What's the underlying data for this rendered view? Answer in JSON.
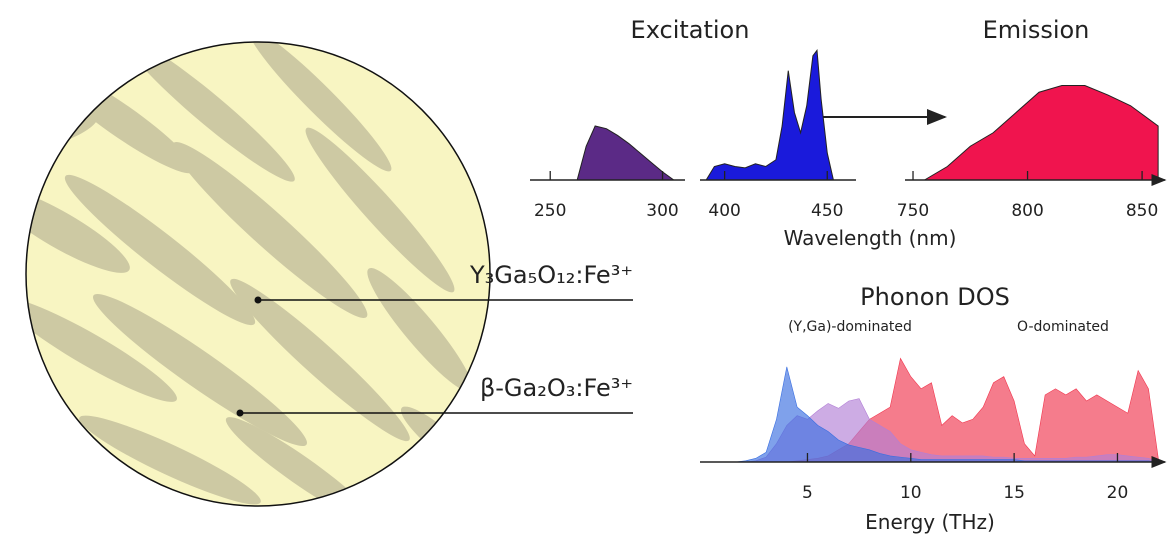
{
  "labels": [
    "Y₃Ga₅O₁₂:Fe³⁺",
    "β-Ga₂O₃:Fe³⁺"
  ],
  "chart_data": [
    {
      "type": "area",
      "title": "Excitation",
      "x": [
        262,
        266,
        270,
        275,
        280,
        285,
        290,
        295,
        300,
        305
      ],
      "series": [
        {
          "color": "#5b2a86",
          "values": [
            0,
            0.25,
            0.4,
            0.38,
            0.33,
            0.27,
            0.2,
            0.13,
            0.06,
            0
          ]
        }
      ],
      "xlim": [
        241,
        310
      ],
      "xticks": [
        250,
        300
      ],
      "ylim": [
        0,
        1
      ]
    },
    {
      "type": "area",
      "xlabel": "Wavelength (nm)",
      "x": [
        391,
        395,
        400,
        405,
        410,
        415,
        420,
        425,
        428,
        431,
        434,
        437,
        440,
        443,
        445,
        447,
        450,
        453
      ],
      "series": [
        {
          "color": "#1a1adb",
          "values": [
            0,
            0.1,
            0.12,
            0.1,
            0.09,
            0.12,
            0.1,
            0.15,
            0.4,
            0.81,
            0.5,
            0.35,
            0.55,
            0.92,
            0.96,
            0.6,
            0.2,
            0
          ]
        }
      ],
      "xlim": [
        388,
        464
      ],
      "xticks": [
        400,
        450
      ],
      "ylim": [
        0,
        1
      ]
    },
    {
      "type": "area",
      "title": "Emission",
      "x": [
        755,
        765,
        775,
        785,
        795,
        805,
        815,
        825,
        835,
        845,
        857
      ],
      "series": [
        {
          "color": "#f0144e",
          "values": [
            0,
            0.1,
            0.25,
            0.35,
            0.5,
            0.65,
            0.7,
            0.7,
            0.63,
            0.55,
            0.4
          ]
        }
      ],
      "xlim": [
        746.5,
        860
      ],
      "xticks": [
        750,
        800,
        850
      ],
      "ylim": [
        0,
        1
      ]
    },
    {
      "type": "area",
      "title": "Phonon DOS",
      "xlabel": "Energy (THz)",
      "annotations": [
        "(Y,Ga)-dominated",
        "O-dominated"
      ],
      "x": [
        0,
        0.5,
        1,
        1.5,
        2,
        2.5,
        3,
        3.5,
        4,
        4.5,
        5,
        5.5,
        6,
        6.5,
        7,
        7.5,
        8,
        8.5,
        9,
        9.5,
        10,
        10.5,
        11,
        11.5,
        12,
        12.5,
        13,
        13.5,
        14,
        14.5,
        15,
        15.5,
        16,
        16.5,
        17,
        17.5,
        18,
        18.5,
        19,
        19.5,
        20,
        20.5,
        21,
        21.5,
        22
      ],
      "series": [
        {
          "color": "#f0364e",
          "values": [
            0,
            0,
            0,
            0,
            0,
            0,
            0,
            0,
            0,
            0.01,
            0.02,
            0.03,
            0.05,
            0.1,
            0.15,
            0.25,
            0.35,
            0.4,
            0.45,
            0.85,
            0.7,
            0.6,
            0.65,
            0.3,
            0.38,
            0.32,
            0.35,
            0.45,
            0.65,
            0.7,
            0.5,
            0.15,
            0.05,
            0.55,
            0.6,
            0.55,
            0.6,
            0.5,
            0.55,
            0.5,
            0.45,
            0.4,
            0.75,
            0.6,
            0
          ]
        },
        {
          "color": "#b27fd6",
          "values": [
            0,
            0,
            0,
            0,
            0,
            0.01,
            0.04,
            0.15,
            0.3,
            0.38,
            0.35,
            0.42,
            0.48,
            0.44,
            0.5,
            0.52,
            0.35,
            0.3,
            0.25,
            0.15,
            0.1,
            0.08,
            0.06,
            0.05,
            0.05,
            0.05,
            0.05,
            0.05,
            0.04,
            0.04,
            0.03,
            0.03,
            0.03,
            0.03,
            0.03,
            0.03,
            0.04,
            0.04,
            0.05,
            0.06,
            0.06,
            0.05,
            0.04,
            0.03,
            0
          ]
        },
        {
          "color": "#3a6fe0",
          "values": [
            0,
            0,
            0,
            0,
            0.01,
            0.03,
            0.08,
            0.35,
            0.78,
            0.45,
            0.38,
            0.3,
            0.25,
            0.18,
            0.14,
            0.12,
            0.1,
            0.07,
            0.05,
            0.04,
            0.03,
            0.02,
            0.02,
            0.02,
            0.02,
            0.02,
            0.02,
            0.02,
            0.02,
            0.02,
            0.02,
            0.01,
            0.01,
            0.01,
            0.01,
            0.01,
            0.01,
            0.01,
            0.01,
            0.01,
            0.01,
            0.01,
            0.01,
            0.01,
            0
          ]
        }
      ],
      "xlim": [
        -0.2,
        22.3
      ],
      "xticks": [
        5,
        10,
        15,
        20
      ],
      "ylim": [
        0,
        1
      ]
    }
  ]
}
